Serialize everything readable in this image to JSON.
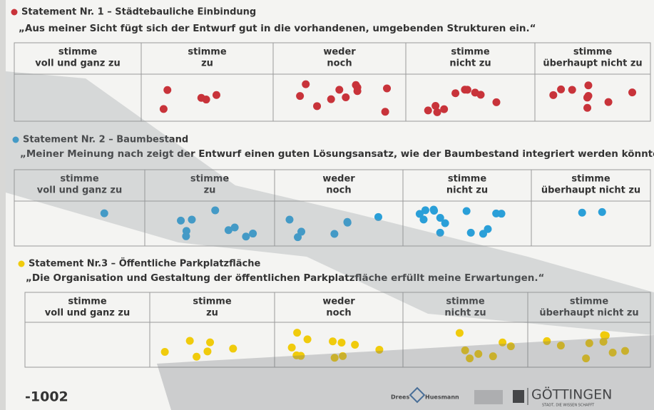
{
  "statements": [
    {
      "title": "Statement Nr. 1 – Städtebauliche Einbindung",
      "quote": "„Aus meiner Sicht fügt sich der Entwurf gut in die vorhandenen, umgebenden Strukturen ein.“",
      "color": "#c8333a",
      "columns": [
        [
          "stimme",
          "voll und ganz zu"
        ],
        [
          "stimme",
          "zu"
        ],
        [
          "weder",
          "noch"
        ],
        [
          "stimme",
          "nicht zu"
        ],
        [
          "stimme",
          "überhaupt nicht zu"
        ]
      ],
      "votes": [
        0,
        5,
        11,
        10,
        9
      ]
    },
    {
      "title": "Statement Nr. 2 – Baumbestand",
      "quote": "„Meiner Meinung nach zeigt der Entwurf einen guten Lösungsansatz, wie der Baumbestand integriert werden könnte.“",
      "color": "#2a9fd8",
      "columns": [
        [
          "stimme",
          "voll und ganz zu"
        ],
        [
          "stimme",
          "zu"
        ],
        [
          "weder",
          "noch"
        ],
        [
          "stimme",
          "nicht zu"
        ],
        [
          "stimme",
          "überhaupt nicht zu"
        ]
      ],
      "votes": [
        1,
        9,
        7,
        14,
        2
      ]
    },
    {
      "title": "Statement Nr.3 – Öffentliche Parkplatzfläche",
      "quote": "„Die Organisation und Gestaltung der öffentlichen Parkplatzfläche erfüllt meine Erwartungen.“",
      "color": "#f0cb0c",
      "columns": [
        [
          "stimme",
          "voll und ganz zu"
        ],
        [
          "stimme",
          "zu"
        ],
        [
          "weder",
          "noch"
        ],
        [
          "stimme",
          "nicht zu"
        ],
        [
          "stimme",
          "überhaupt nicht zu"
        ]
      ],
      "votes": [
        0,
        6,
        11,
        7,
        9
      ]
    }
  ],
  "footer": {
    "number": "-1002",
    "logo1": [
      "Drees",
      "Huesmann"
    ],
    "logo2": "GÖTTINGEN",
    "logo2_sub": "STADT, DIE WISSEN SCHAFFT"
  }
}
